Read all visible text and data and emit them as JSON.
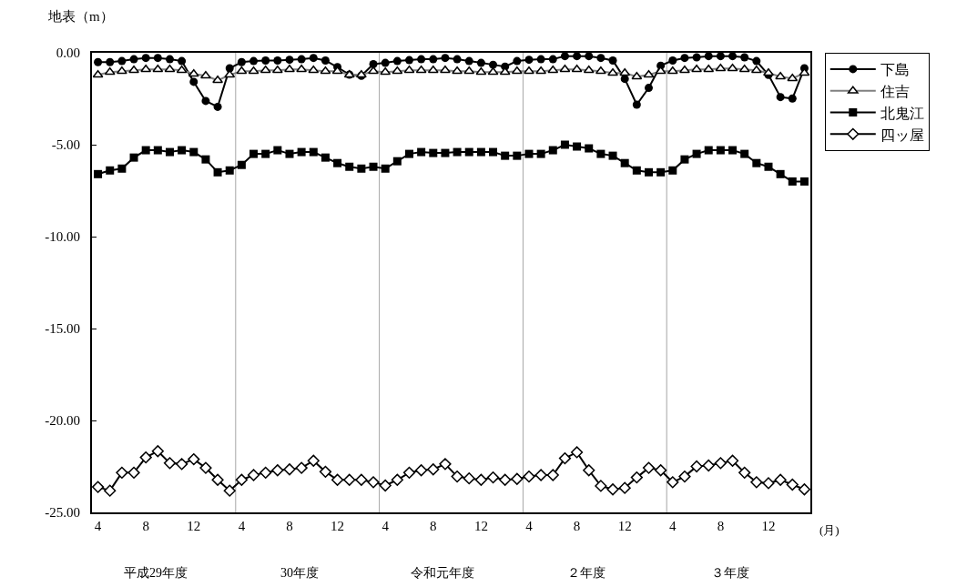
{
  "chart_data": {
    "type": "line",
    "ylabel": "地表（m）",
    "categories": [
      "4",
      null,
      null,
      null,
      "8",
      null,
      null,
      null,
      "12",
      null,
      null,
      null,
      "4",
      null,
      null,
      null,
      "8",
      null,
      null,
      null,
      "12",
      null,
      null,
      null,
      "4",
      null,
      null,
      null,
      "8",
      null,
      null,
      null,
      "12",
      null,
      null,
      null,
      "4",
      null,
      null,
      null,
      "8",
      null,
      null,
      null,
      "12",
      null,
      null,
      null,
      "4",
      null,
      null,
      null,
      "8",
      null,
      null,
      null,
      "12",
      null,
      null,
      null
    ],
    "series": [
      {
        "name": "下島",
        "color": "#000000",
        "marker": "circle",
        "values": [
          -0.51,
          -0.51,
          -0.45,
          -0.35,
          -0.28,
          -0.28,
          -0.35,
          -0.45,
          -1.58,
          -2.62,
          -2.94,
          -0.84,
          -0.51,
          -0.45,
          -0.42,
          -0.42,
          -0.38,
          -0.35,
          -0.28,
          -0.42,
          -0.78,
          -1.19,
          -1.25,
          -0.62,
          -0.55,
          -0.45,
          -0.4,
          -0.35,
          -0.35,
          -0.28,
          -0.35,
          -0.45,
          -0.55,
          -0.65,
          -0.75,
          -0.45,
          -0.38,
          -0.35,
          -0.35,
          -0.18,
          -0.18,
          -0.18,
          -0.28,
          -0.42,
          -1.42,
          -2.82,
          -1.91,
          -0.7,
          -0.42,
          -0.28,
          -0.25,
          -0.18,
          -0.18,
          -0.18,
          -0.25,
          -0.45,
          -1.2,
          -2.41,
          -2.49,
          -0.84
        ]
      },
      {
        "name": "住吉",
        "color": "#808080",
        "marker": "triangle",
        "values": [
          -1.2,
          -1.05,
          -1.0,
          -0.95,
          -0.9,
          -0.9,
          -0.9,
          -0.95,
          -1.15,
          -1.25,
          -1.5,
          -1.2,
          -1.0,
          -1.0,
          -0.95,
          -0.95,
          -0.9,
          -0.9,
          -0.95,
          -1.0,
          -1.0,
          -1.2,
          -1.2,
          -1.0,
          -1.05,
          -1.0,
          -0.95,
          -0.95,
          -0.95,
          -0.95,
          -1.0,
          -1.0,
          -1.05,
          -1.05,
          -1.05,
          -1.0,
          -1.0,
          -1.0,
          -0.95,
          -0.9,
          -0.9,
          -0.95,
          -1.0,
          -1.1,
          -1.1,
          -1.3,
          -1.2,
          -1.0,
          -1.0,
          -0.95,
          -0.9,
          -0.9,
          -0.85,
          -0.85,
          -0.9,
          -0.95,
          -1.1,
          -1.3,
          -1.4,
          -1.1
        ]
      },
      {
        "name": "北鬼江",
        "color": "#000000",
        "marker": "square",
        "values": [
          -6.6,
          -6.4,
          -6.3,
          -5.7,
          -5.3,
          -5.3,
          -5.4,
          -5.3,
          -5.4,
          -5.8,
          -6.5,
          -6.4,
          -6.1,
          -5.5,
          -5.5,
          -5.3,
          -5.5,
          -5.4,
          -5.4,
          -5.7,
          -6.0,
          -6.2,
          -6.3,
          -6.2,
          -6.3,
          -5.9,
          -5.5,
          -5.4,
          -5.45,
          -5.45,
          -5.4,
          -5.4,
          -5.4,
          -5.4,
          -5.6,
          -5.6,
          -5.5,
          -5.5,
          -5.3,
          -5.0,
          -5.1,
          -5.2,
          -5.5,
          -5.6,
          -6.0,
          -6.4,
          -6.5,
          -6.5,
          -6.4,
          -5.8,
          -5.5,
          -5.3,
          -5.3,
          -5.3,
          -5.5,
          -6.0,
          -6.2,
          -6.6,
          -7.0,
          -7.0
        ]
      },
      {
        "name": "四ッ屋",
        "color": "#000000",
        "marker": "diamond",
        "values": [
          -23.62,
          -23.82,
          -22.84,
          -22.84,
          -22.01,
          -21.67,
          -22.32,
          -22.37,
          -22.11,
          -22.58,
          -23.23,
          -23.82,
          -23.23,
          -22.97,
          -22.84,
          -22.71,
          -22.66,
          -22.58,
          -22.19,
          -22.79,
          -23.23,
          -23.23,
          -23.23,
          -23.36,
          -23.54,
          -23.23,
          -22.84,
          -22.71,
          -22.66,
          -22.37,
          -23.05,
          -23.15,
          -23.23,
          -23.1,
          -23.23,
          -23.18,
          -23.05,
          -22.97,
          -22.97,
          -22.06,
          -21.73,
          -22.71,
          -23.56,
          -23.75,
          -23.67,
          -23.1,
          -22.58,
          -22.71,
          -23.36,
          -23.05,
          -22.5,
          -22.45,
          -22.32,
          -22.19,
          -22.84,
          -23.36,
          -23.41,
          -23.23,
          -23.49,
          -23.75
        ]
      }
    ],
    "ylim": [
      -25,
      0
    ],
    "yticks": [
      {
        "value": 0,
        "label": "0.00"
      },
      {
        "value": -5,
        "label": "-5.00"
      },
      {
        "value": -10,
        "label": "-10.00"
      },
      {
        "value": -15,
        "label": "-15.00"
      },
      {
        "value": -20,
        "label": "-20.00"
      },
      {
        "value": -25,
        "label": "-25.00"
      }
    ],
    "annotations": [
      "平成29年度",
      "30年度",
      "令和元年度",
      "２年度",
      "３年度",
      "(月)"
    ],
    "grid": false,
    "legend": "top right",
    "line_style": "solid"
  }
}
